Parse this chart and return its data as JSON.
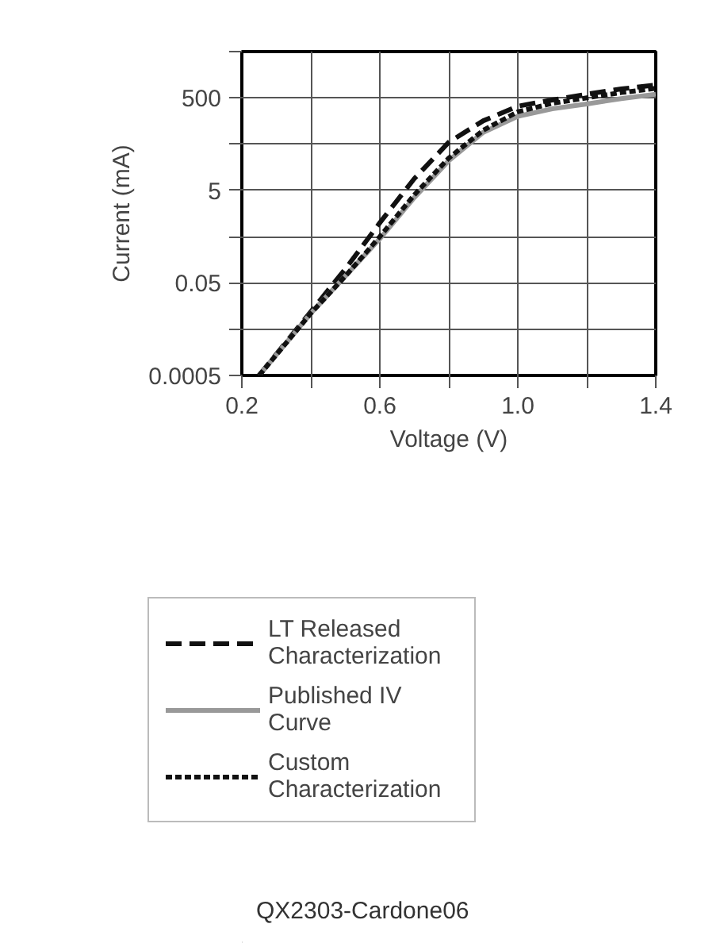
{
  "chart_data": {
    "type": "line",
    "xlabel": "Voltage (V)",
    "ylabel": "Current (mA)",
    "log": "y",
    "xlim": [
      0.2,
      1.4
    ],
    "xticks": [
      0.2,
      {
        "value": 0.4,
        "label": null
      },
      0.6,
      {
        "value": 0.8,
        "label": null
      },
      {
        "value": 1.0,
        "label": "1.0"
      },
      {
        "value": 1.2,
        "label": null
      },
      1.4
    ],
    "ylim": [
      0.0005,
      5000
    ],
    "yticks": [
      0.0005,
      {
        "value": 0.005,
        "label": null
      },
      0.05,
      {
        "value": 0.5,
        "label": null
      },
      5,
      {
        "value": 50,
        "label": null
      },
      500,
      {
        "value": 5000,
        "label": null
      }
    ],
    "grid": true,
    "legend": "bottom",
    "marker": "none",
    "x": [
      0.25,
      0.4,
      0.5,
      0.6,
      0.7,
      0.8,
      0.9,
      1.0,
      1.1,
      1.2,
      1.3,
      1.4
    ],
    "series": [
      {
        "name": "LT Released Characterization",
        "color": "#111111",
        "line_style": "dashed",
        "values": [
          0.0005,
          0.012,
          0.1,
          1.0,
          9,
          55,
          160,
          330,
          450,
          600,
          780,
          950
        ]
      },
      {
        "name": "Published IV Curve",
        "color": "#999999",
        "line_style": "solid",
        "values": [
          0.0005,
          0.011,
          0.07,
          0.45,
          3.5,
          22,
          90,
          200,
          290,
          370,
          480,
          600
        ]
      },
      {
        "name": "Custom Characterization",
        "color": "#111111",
        "line_style": "dotted",
        "values": [
          0.0005,
          0.011,
          0.07,
          0.5,
          4,
          25,
          100,
          250,
          380,
          500,
          650,
          800
        ]
      }
    ],
    "annotations": [
      "QX2303-Cardone06"
    ]
  }
}
